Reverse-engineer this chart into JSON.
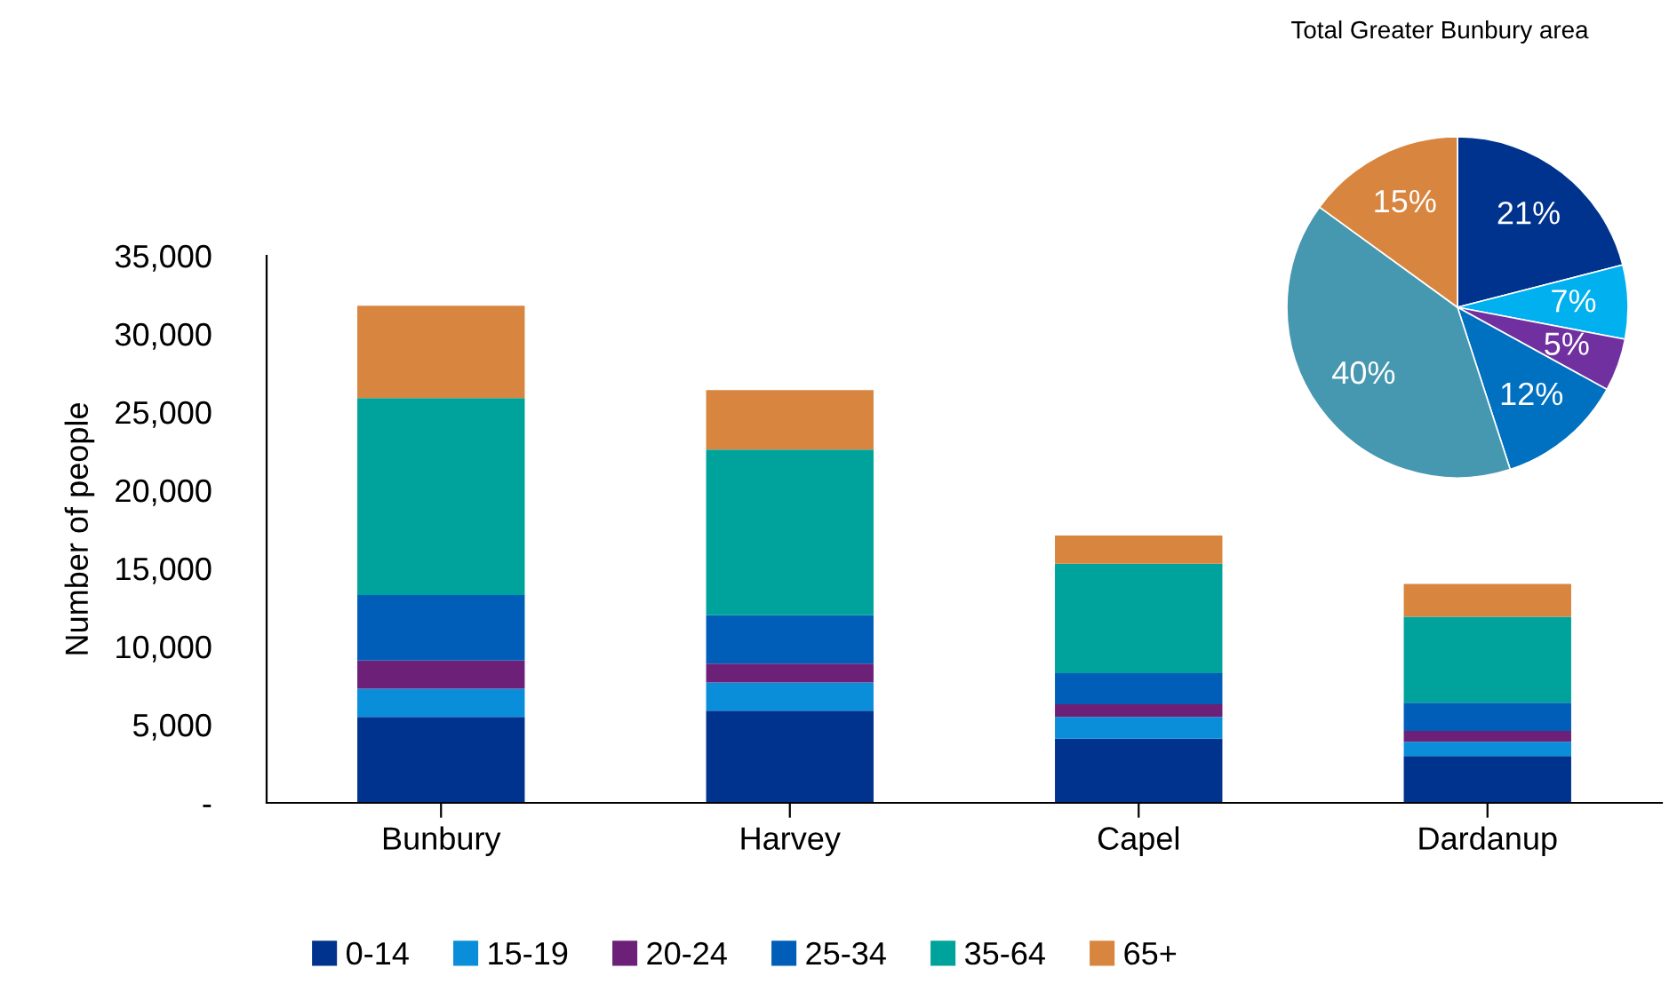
{
  "chart_data": [
    {
      "type": "bar",
      "stacked": true,
      "ylabel": "Number of people",
      "categories": [
        "Bunbury",
        "Harvey",
        "Capel",
        "Dardanup"
      ],
      "series": [
        {
          "name": "0-14",
          "color": "#00338d",
          "values": [
            5500,
            5900,
            4100,
            3000
          ]
        },
        {
          "name": "15-19",
          "color": "#0a8ed9",
          "values": [
            1800,
            1800,
            1400,
            900
          ]
        },
        {
          "name": "20-24",
          "color": "#6d2077",
          "values": [
            1800,
            1200,
            800,
            700
          ]
        },
        {
          "name": "25-34",
          "color": "#005eb8",
          "values": [
            4200,
            3100,
            2000,
            1800
          ]
        },
        {
          "name": "35-64",
          "color": "#00a39b",
          "values": [
            12600,
            10600,
            7000,
            5500
          ]
        },
        {
          "name": "65+",
          "color": "#d8853f",
          "values": [
            5900,
            3800,
            1800,
            2100
          ]
        }
      ],
      "ylim": [
        0,
        35000
      ],
      "yticks": [
        {
          "value": 0,
          "label": "-"
        },
        {
          "value": 5000,
          "label": "5,000"
        },
        {
          "value": 10000,
          "label": "10,000"
        },
        {
          "value": 15000,
          "label": "15,000"
        },
        {
          "value": 20000,
          "label": "20,000"
        },
        {
          "value": 25000,
          "label": "25,000"
        },
        {
          "value": 30000,
          "label": "30,000"
        },
        {
          "value": 35000,
          "label": "35,000"
        }
      ],
      "grid": false,
      "legend": "bottom"
    },
    {
      "type": "pie",
      "title": "Total Greater Bunbury area",
      "categories": [
        null,
        null,
        null,
        null,
        null,
        null
      ],
      "values": [
        21,
        7,
        5,
        12,
        40,
        15
      ],
      "colors": [
        "#00338d",
        "#00b0ef",
        "#7030a0",
        "#0070c0",
        "#4698b0",
        "#d8853f"
      ],
      "value_labels": [
        "21%",
        "7%",
        "5%",
        "12%",
        "40%",
        "15%"
      ]
    }
  ]
}
